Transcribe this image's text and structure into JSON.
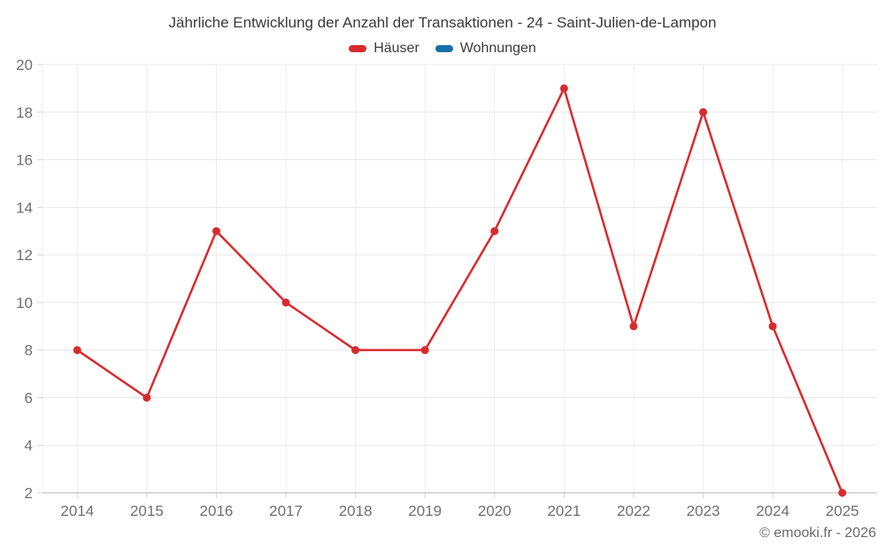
{
  "chart": {
    "title": "Jährliche Entwicklung der Anzahl der Transaktionen - 24 - Saint-Julien-de-Lampon",
    "copyright": "© emooki.fr - 2026"
  },
  "chart_data": {
    "type": "line",
    "title": "Jährliche Entwicklung der Anzahl der Transaktionen - 24 - Saint-Julien-de-Lampon",
    "categories": [
      "2014",
      "2015",
      "2016",
      "2017",
      "2018",
      "2019",
      "2020",
      "2021",
      "2022",
      "2023",
      "2024",
      "2025"
    ],
    "series": [
      {
        "name": "Häuser",
        "color": "#d82b2e",
        "values": [
          8,
          6,
          13,
          10,
          8,
          8,
          13,
          19,
          9,
          18,
          9,
          2
        ]
      },
      {
        "name": "Wohnungen",
        "color": "#1470a6",
        "values": []
      }
    ],
    "xlabel": "",
    "ylabel": "",
    "ylim": [
      2,
      20
    ],
    "y_ticks": [
      2,
      4,
      6,
      8,
      10,
      12,
      14,
      16,
      18,
      20
    ],
    "grid": true,
    "legend_position": "top",
    "colors": {
      "h_gridline": "#e8e8e8",
      "v_gridline": "#eeeeee",
      "axis_line": "#b3b3b3",
      "tick": "#d5d5d5",
      "axis_text": "#6f6f6f",
      "title_text": "#3a3a3a"
    }
  }
}
